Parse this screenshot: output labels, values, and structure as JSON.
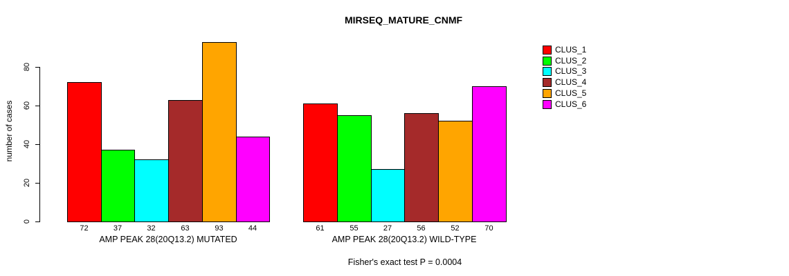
{
  "chart_data": {
    "type": "bar",
    "title": "MIRSEQ_MATURE_CNMF",
    "xlabel": "",
    "ylabel": "number of cases",
    "ylim": [
      0,
      93
    ],
    "yticks": [
      0,
      20,
      40,
      60,
      80
    ],
    "grid": false,
    "legend_position": "top-right",
    "bar_value_labels_shown": true,
    "series": [
      {
        "name": "CLUS_1",
        "color": "#FF0000",
        "values": [
          72,
          61
        ]
      },
      {
        "name": "CLUS_2",
        "color": "#00FF00",
        "values": [
          37,
          55
        ]
      },
      {
        "name": "CLUS_3",
        "color": "#00FFFF",
        "values": [
          32,
          27
        ]
      },
      {
        "name": "CLUS_4",
        "color": "#A52A2A",
        "values": [
          63,
          56
        ]
      },
      {
        "name": "CLUS_5",
        "color": "#FFA500",
        "values": [
          93,
          52
        ]
      },
      {
        "name": "CLUS_6",
        "color": "#FF00FF",
        "values": [
          44,
          70
        ]
      }
    ],
    "categories": [
      "AMP PEAK 28(20Q13.2) MUTATED",
      "AMP PEAK 28(20Q13.2) WILD-TYPE"
    ],
    "groups": [
      {
        "label": "AMP PEAK 28(20Q13.2) MUTATED",
        "values": [
          72,
          37,
          32,
          63,
          93,
          44
        ]
      },
      {
        "label": "AMP PEAK 28(20Q13.2) WILD-TYPE",
        "values": [
          61,
          55,
          27,
          56,
          52,
          70
        ]
      }
    ],
    "annotation": "Fisher's exact test P = 0.0004"
  }
}
